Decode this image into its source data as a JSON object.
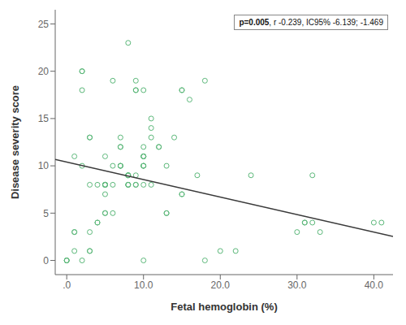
{
  "chart_data": {
    "type": "scatter",
    "xlabel": "Fetal hemoglobin (%)",
    "ylabel": "Disease severity score",
    "xlim": [
      -1.5,
      42.5
    ],
    "ylim": [
      -1.5,
      26.5
    ],
    "xticks": [
      {
        "value": 0,
        "label": ".0"
      },
      {
        "value": 10,
        "label": "10.0"
      },
      {
        "value": 20,
        "label": "20.0"
      },
      {
        "value": 30,
        "label": "30.0"
      },
      {
        "value": 40,
        "label": "40.0"
      }
    ],
    "yticks": [
      0,
      5,
      10,
      15,
      20,
      25
    ],
    "grid": false,
    "annotation": "p=0.005, r -0.239, IC95% -6.139; -1.469",
    "series": [
      {
        "type": "scatter",
        "marker": "circle",
        "color": "#5cb87a",
        "x": [
          0,
          0,
          0,
          1,
          1,
          1,
          1,
          2,
          2,
          2,
          2,
          2,
          3,
          3,
          3,
          3,
          3,
          3,
          4,
          4,
          4,
          5,
          5,
          5,
          5,
          5,
          5,
          5,
          5,
          6,
          6,
          6,
          6,
          7,
          7,
          7,
          7,
          7,
          7,
          8,
          8,
          8,
          8,
          8,
          8,
          8,
          8,
          9,
          9,
          9,
          9,
          9,
          9,
          10,
          10,
          10,
          10,
          10,
          10,
          10,
          10,
          10,
          10,
          11,
          11,
          11,
          11,
          12,
          12,
          13,
          13,
          13,
          14,
          15,
          15,
          15,
          15,
          16,
          17,
          18,
          18,
          20,
          22,
          24,
          30,
          31,
          31,
          32,
          32,
          33,
          40,
          41
        ],
        "y": [
          0,
          0,
          0,
          11,
          1,
          3,
          3,
          18,
          20,
          20,
          10,
          0,
          13,
          13,
          8,
          3,
          1,
          1,
          4,
          4,
          8,
          11,
          8,
          8,
          8,
          8,
          7,
          5,
          5,
          10,
          19,
          8,
          5,
          10,
          10,
          10,
          12,
          12,
          13,
          9,
          9,
          9,
          9,
          8,
          8,
          8,
          23,
          19,
          8,
          8,
          9,
          18,
          18,
          18,
          11,
          11,
          11,
          10,
          10,
          10,
          12,
          8,
          0,
          8,
          13,
          15,
          14,
          12,
          12,
          5,
          5,
          10,
          13,
          7,
          7,
          18,
          18,
          17,
          9,
          19,
          0,
          1,
          1,
          9,
          3,
          4,
          4,
          4,
          9,
          3,
          4,
          4
        ]
      },
      {
        "type": "line",
        "color": "#3a3a3a",
        "x": [
          -1.5,
          42.5
        ],
        "y": [
          10.6775,
          2.5375
        ]
      }
    ]
  }
}
